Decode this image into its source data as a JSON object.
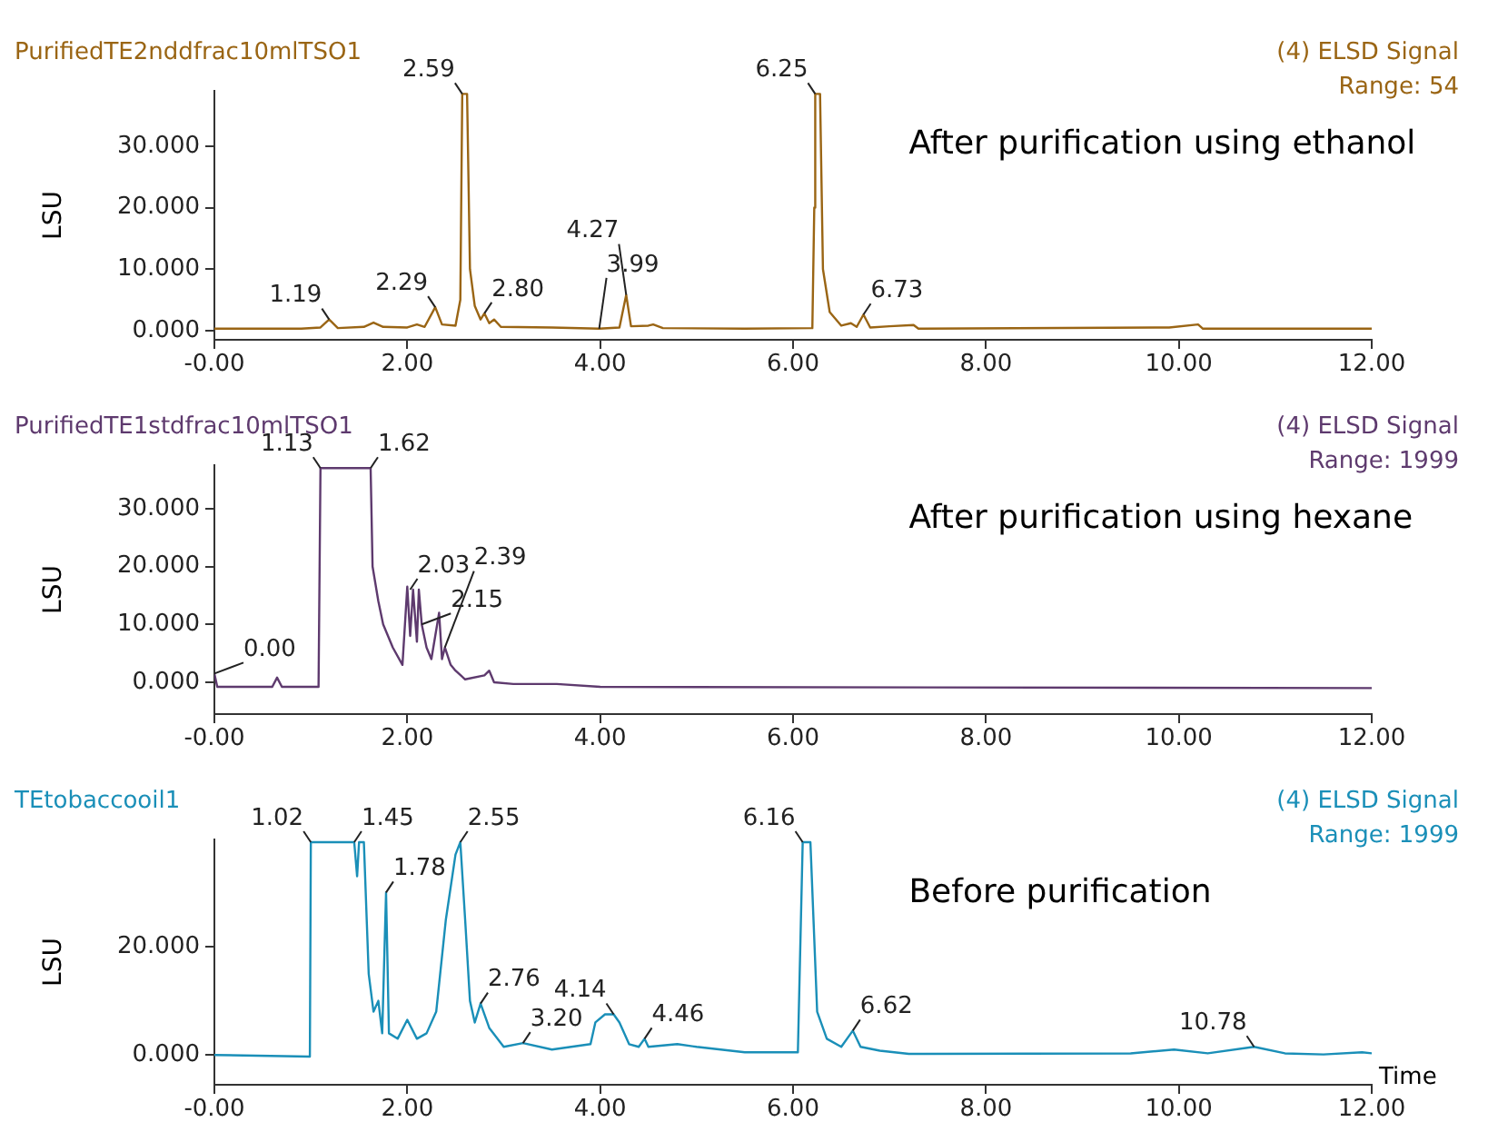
{
  "chart_data": [
    {
      "type": "line",
      "title": "PurifiedTE2nddfrac10mlTSO1",
      "subtitle": "(4) ELSD Signal",
      "ylabel": "LSU",
      "color": "#9a6514",
      "x": [
        0,
        0.9,
        1.1,
        1.19,
        1.28,
        1.55,
        1.65,
        1.75,
        2.0,
        2.1,
        2.18,
        2.29,
        2.36,
        2.5,
        2.55,
        2.57,
        2.62,
        2.65,
        2.7,
        2.76,
        2.8,
        2.85,
        2.9,
        2.97,
        3.5,
        3.99,
        4.2,
        4.27,
        4.32,
        4.5,
        4.55,
        4.65,
        5.5,
        6.2,
        6.22,
        6.23,
        6.28,
        6.31,
        6.38,
        6.5,
        6.6,
        6.66,
        6.73,
        6.8,
        7.0,
        7.25,
        7.3,
        9.9,
        10.2,
        10.25,
        12
      ],
      "values": [
        0.3,
        0.3,
        0.5,
        1.8,
        0.4,
        0.6,
        1.3,
        0.6,
        0.5,
        1.0,
        0.6,
        3.8,
        1.0,
        0.8,
        5,
        38.5,
        38.5,
        10,
        4,
        1.8,
        2.8,
        1.2,
        1.8,
        0.6,
        0.5,
        0.3,
        0.5,
        5.8,
        0.7,
        0.8,
        1.0,
        0.4,
        0.3,
        0.4,
        20,
        38.5,
        38.5,
        10,
        3,
        0.8,
        1.2,
        0.6,
        2.6,
        0.5,
        0.7,
        0.9,
        0.3,
        0.5,
        1.0,
        0.3,
        0.3
      ],
      "xlim": [
        0,
        12
      ],
      "ylim": [
        -1.5,
        39
      ],
      "xticks": [
        {
          "value": 0,
          "label": "-0.00"
        },
        {
          "value": 2,
          "label": "2.00"
        },
        {
          "value": 4,
          "label": "4.00"
        },
        {
          "value": 6,
          "label": "6.00"
        },
        {
          "value": 8,
          "label": "8.00"
        },
        {
          "value": 10,
          "label": "10.00"
        },
        {
          "value": 12,
          "label": "12.00"
        }
      ],
      "yticks": [
        {
          "value": 0,
          "label": "0.000"
        },
        {
          "value": 10,
          "label": "10.000"
        },
        {
          "value": 20,
          "label": "20.000"
        },
        {
          "value": 30,
          "label": "30.000"
        }
      ],
      "annotations": [
        "Range: 54",
        "After purification using ethanol",
        {
          "text": "1.19",
          "x": 1.19,
          "y": 1.8
        },
        {
          "text": "2.29",
          "x": 2.29,
          "y": 3.8
        },
        {
          "text": "2.59",
          "x": 2.57,
          "y": 38.5
        },
        {
          "text": "2.80",
          "x": 2.8,
          "y": 2.8
        },
        {
          "text": "3.99",
          "x": 3.99,
          "y": 0.3
        },
        {
          "text": "4.27",
          "x": 4.27,
          "y": 5.8
        },
        {
          "text": "6.25",
          "x": 6.23,
          "y": 38.5
        },
        {
          "text": "6.73",
          "x": 6.73,
          "y": 2.6
        }
      ]
    },
    {
      "type": "line",
      "title": "PurifiedTE1stdfrac10mlTSO1",
      "subtitle": "(4) ELSD Signal",
      "ylabel": "LSU",
      "color": "#5e3a6e",
      "x": [
        0,
        0.03,
        0.6,
        0.65,
        0.7,
        1.08,
        1.1,
        1.62,
        1.64,
        1.7,
        1.75,
        1.85,
        1.95,
        2.0,
        2.03,
        2.06,
        2.1,
        2.12,
        2.15,
        2.2,
        2.25,
        2.33,
        2.36,
        2.39,
        2.45,
        2.5,
        2.6,
        2.8,
        2.85,
        2.9,
        3.1,
        3.55,
        4,
        12
      ],
      "values": [
        1.5,
        -0.8,
        -0.8,
        0.8,
        -0.8,
        -0.8,
        37,
        37,
        20,
        14,
        10,
        6,
        3,
        16.5,
        8,
        16,
        7,
        16,
        10,
        6,
        4,
        12,
        4,
        6,
        3,
        2,
        0.5,
        1.2,
        2,
        0,
        -0.3,
        -0.3,
        -0.8,
        -1.0
      ],
      "xlim": [
        0,
        12
      ],
      "ylim": [
        -5.5,
        37.5
      ],
      "xticks": [
        {
          "value": 0,
          "label": "-0.00"
        },
        {
          "value": 2,
          "label": "2.00"
        },
        {
          "value": 4,
          "label": "4.00"
        },
        {
          "value": 6,
          "label": "6.00"
        },
        {
          "value": 8,
          "label": "8.00"
        },
        {
          "value": 10,
          "label": "10.00"
        },
        {
          "value": 12,
          "label": "12.00"
        }
      ],
      "yticks": [
        {
          "value": 0,
          "label": "0.000"
        },
        {
          "value": 10,
          "label": "10.000"
        },
        {
          "value": 20,
          "label": "20.000"
        },
        {
          "value": 30,
          "label": "30.000"
        }
      ],
      "annotations": [
        "Range: 1999",
        "After purification using hexane",
        {
          "text": "0.00",
          "x": 0,
          "y": 1.5
        },
        {
          "text": "1.13",
          "x": 1.1,
          "y": 37
        },
        {
          "text": "1.62",
          "x": 1.62,
          "y": 37
        },
        {
          "text": "2.03",
          "x": 2.03,
          "y": 16
        },
        {
          "text": "2.15",
          "x": 2.15,
          "y": 10
        },
        {
          "text": "2.39",
          "x": 2.39,
          "y": 6
        }
      ]
    },
    {
      "type": "line",
      "title": "TEtobaccooil1",
      "subtitle": "(4) ELSD Signal",
      "ylabel": "LSU",
      "xlabel": "Time",
      "color": "#1a8fb8",
      "x": [
        0,
        0.99,
        1.0,
        1.45,
        1.48,
        1.5,
        1.55,
        1.6,
        1.65,
        1.7,
        1.74,
        1.78,
        1.81,
        1.9,
        2.0,
        2.1,
        2.2,
        2.3,
        2.4,
        2.5,
        2.55,
        2.6,
        2.65,
        2.7,
        2.76,
        2.85,
        3.0,
        3.2,
        3.5,
        3.9,
        3.95,
        4.05,
        4.14,
        4.2,
        4.3,
        4.4,
        4.46,
        4.5,
        4.8,
        5.0,
        5.5,
        6.05,
        6.1,
        6.18,
        6.25,
        6.35,
        6.5,
        6.62,
        6.7,
        6.9,
        7.2,
        9.5,
        9.95,
        10.3,
        10.78,
        11.1,
        11.5,
        11.9,
        12
      ],
      "values": [
        0,
        -0.3,
        39.3,
        39.3,
        33,
        39.3,
        39.3,
        15,
        8,
        10,
        4,
        30,
        4,
        3,
        6.5,
        3,
        4,
        8,
        25,
        37,
        39.3,
        25,
        10,
        6,
        9.5,
        5,
        1.5,
        2.2,
        1,
        2,
        6,
        7.5,
        7.5,
        6,
        2,
        1.5,
        3,
        1.5,
        2,
        1.5,
        0.5,
        0.5,
        39.3,
        39.3,
        8,
        3,
        1.5,
        4.5,
        1.5,
        0.8,
        0.2,
        0.3,
        1,
        0.3,
        1.5,
        0.3,
        0.1,
        0.5,
        0.3
      ],
      "xlim": [
        0,
        12
      ],
      "ylim": [
        -5.5,
        39.8
      ],
      "xticks": [
        {
          "value": 0,
          "label": "-0.00"
        },
        {
          "value": 2,
          "label": "2.00"
        },
        {
          "value": 4,
          "label": "4.00"
        },
        {
          "value": 6,
          "label": "6.00"
        },
        {
          "value": 8,
          "label": "8.00"
        },
        {
          "value": 10,
          "label": "10.00"
        },
        {
          "value": 12,
          "label": "12.00"
        }
      ],
      "yticks": [
        {
          "value": 0,
          "label": "0.000"
        },
        {
          "value": 20,
          "label": "20.000"
        }
      ],
      "annotations": [
        "Range: 1999",
        "Before purification",
        {
          "text": "1.02",
          "x": 1.0,
          "y": 39.3
        },
        {
          "text": "1.45",
          "x": 1.45,
          "y": 39.3
        },
        {
          "text": "1.78",
          "x": 1.78,
          "y": 30
        },
        {
          "text": "2.55",
          "x": 2.55,
          "y": 39.3
        },
        {
          "text": "2.76",
          "x": 2.76,
          "y": 9.5
        },
        {
          "text": "3.20",
          "x": 3.2,
          "y": 2.2
        },
        {
          "text": "4.14",
          "x": 4.14,
          "y": 7.5
        },
        {
          "text": "4.46",
          "x": 4.46,
          "y": 3
        },
        {
          "text": "6.16",
          "x": 6.1,
          "y": 39.3
        },
        {
          "text": "6.62",
          "x": 6.62,
          "y": 4.5
        },
        {
          "text": "10.78",
          "x": 10.78,
          "y": 1.5
        }
      ]
    }
  ]
}
